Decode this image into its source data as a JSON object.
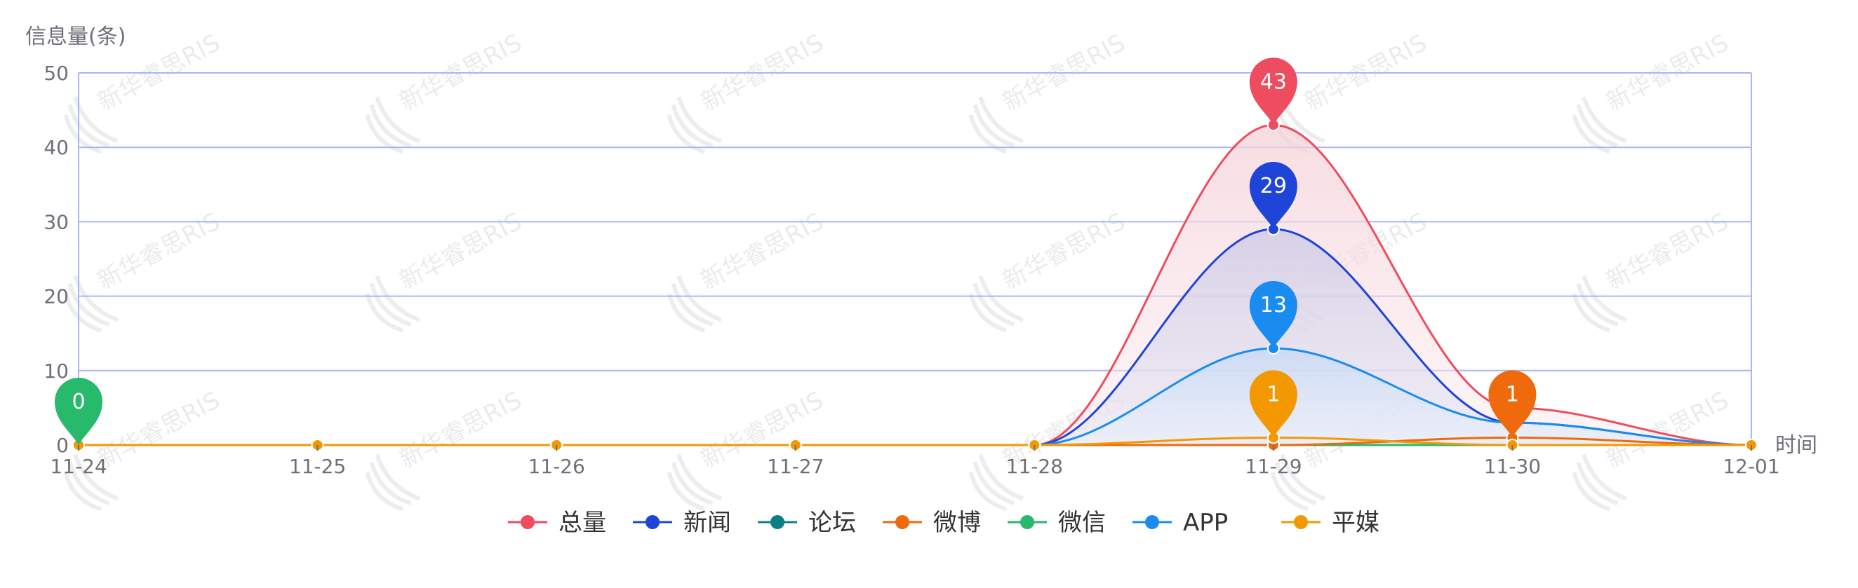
{
  "chart_data": {
    "type": "area",
    "ylabel": "信息量(条)",
    "xlabel": "时间",
    "categories": [
      "11-24",
      "11-25",
      "11-26",
      "11-27",
      "11-28",
      "11-29",
      "11-30",
      "12-01"
    ],
    "ylim": [
      0,
      50
    ],
    "yticks": [
      0,
      10,
      20,
      30,
      40,
      50
    ],
    "grid": true,
    "legend_position": "bottom-center",
    "series": [
      {
        "name": "总量",
        "color": "#ee4c5f",
        "values": [
          0,
          0,
          0,
          0,
          0,
          43,
          5,
          0
        ],
        "fill": true
      },
      {
        "name": "新闻",
        "color": "#1f45d8",
        "values": [
          0,
          0,
          0,
          0,
          0,
          29,
          3,
          0
        ],
        "fill": true
      },
      {
        "name": "论坛",
        "color": "#0b7f86",
        "values": [
          0,
          0,
          0,
          0,
          0,
          0,
          0,
          0
        ],
        "fill": false
      },
      {
        "name": "微博",
        "color": "#ee6a0d",
        "values": [
          0,
          0,
          0,
          0,
          0,
          0,
          1,
          0
        ],
        "fill": false
      },
      {
        "name": "微信",
        "color": "#27b96c",
        "values": [
          0,
          0,
          0,
          0,
          0,
          0,
          0,
          0
        ],
        "fill": false
      },
      {
        "name": "APP",
        "color": "#1a8cf0",
        "values": [
          0,
          0,
          0,
          0,
          0,
          13,
          3,
          0
        ],
        "fill": true
      },
      {
        "name": "平媒",
        "color": "#f39800",
        "values": [
          0,
          0,
          0,
          0,
          0,
          1,
          0,
          0
        ],
        "fill": false
      }
    ],
    "markers": [
      {
        "series": "总量",
        "category": "11-29",
        "label": "43"
      },
      {
        "series": "新闻",
        "category": "11-29",
        "label": "29"
      },
      {
        "series": "APP",
        "category": "11-29",
        "label": "13"
      },
      {
        "series": "平媒",
        "category": "11-29",
        "label": "1"
      },
      {
        "series": "微博",
        "category": "11-30",
        "label": "1"
      },
      {
        "series": "微信",
        "category": "11-24",
        "label": "0"
      }
    ]
  },
  "watermark": {
    "text": "新华睿思RIS"
  }
}
